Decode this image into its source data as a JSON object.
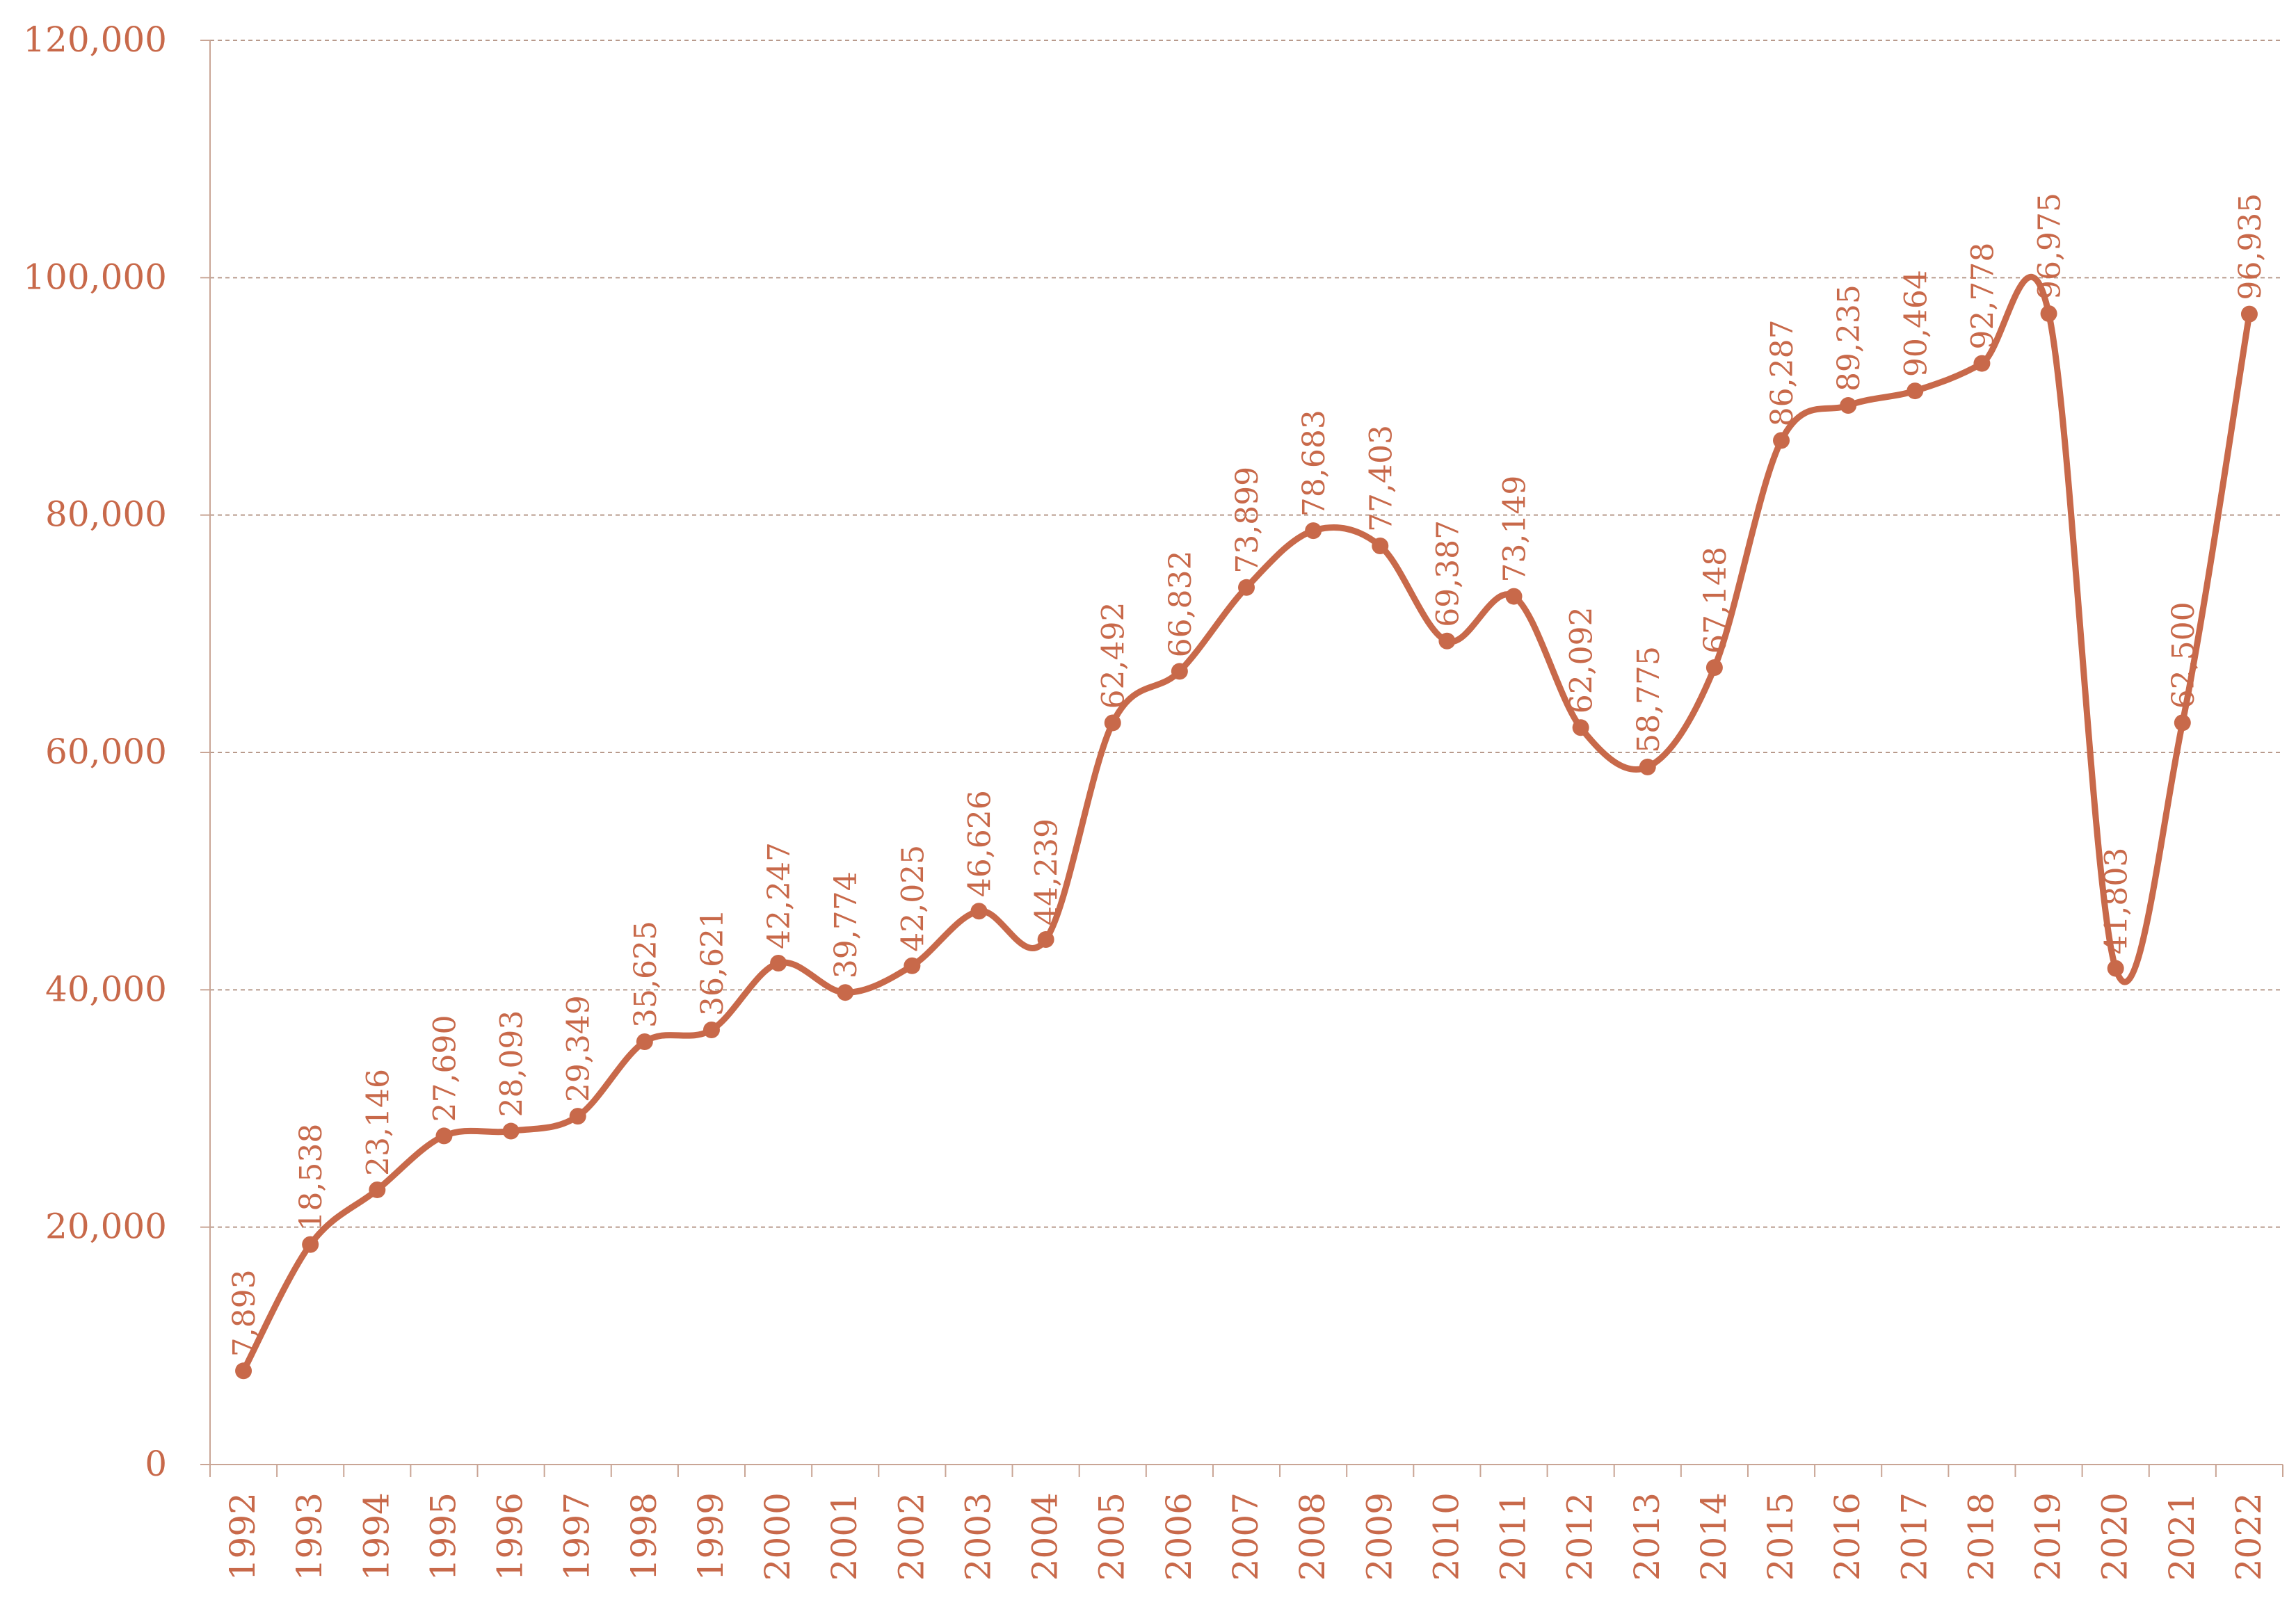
{
  "chart_data": {
    "type": "line",
    "smooth": true,
    "title": "",
    "xlabel": "",
    "ylabel": "",
    "ylim": [
      0,
      120000
    ],
    "y_ticks": [
      0,
      20000,
      40000,
      60000,
      80000,
      100000,
      120000
    ],
    "y_tick_labels": [
      "0",
      "20,000",
      "40,000",
      "60,000",
      "80,000",
      "100,000",
      "120,000"
    ],
    "grid": "horizontal dashed",
    "legend": "none",
    "color": "#C8694A",
    "categories": [
      "1992",
      "1993",
      "1994",
      "1995",
      "1996",
      "1997",
      "1998",
      "1999",
      "2000",
      "2001",
      "2002",
      "2003",
      "2004",
      "2005",
      "2006",
      "2007",
      "2008",
      "2009",
      "2010",
      "2011",
      "2012",
      "2013",
      "2014",
      "2015",
      "2016",
      "2017",
      "2018",
      "2019",
      "2020",
      "2021",
      "2022"
    ],
    "values": [
      7893,
      18538,
      23146,
      27690,
      28093,
      29349,
      35625,
      36621,
      42247,
      39774,
      42025,
      46626,
      44239,
      62492,
      66832,
      73899,
      78683,
      77403,
      69387,
      73149,
      62092,
      58775,
      67148,
      86287,
      89235,
      90464,
      92778,
      96975,
      41803,
      62500,
      96935
    ],
    "data_labels": [
      "7,893",
      "18,538",
      "23,146",
      "27,690",
      "28,093",
      "29,349",
      "35,625",
      "36,621",
      "42,247",
      "39,774",
      "42,025",
      "46,626",
      "44,239",
      "62,492",
      "66,832",
      "73,899",
      "78,683",
      "77,403",
      "69,387",
      "73,149",
      "62,092",
      "58,775",
      "67,148",
      "86,287",
      "89,235",
      "90,464",
      "92,778",
      "96,975",
      "41,803",
      "62,500",
      "96,935"
    ]
  }
}
